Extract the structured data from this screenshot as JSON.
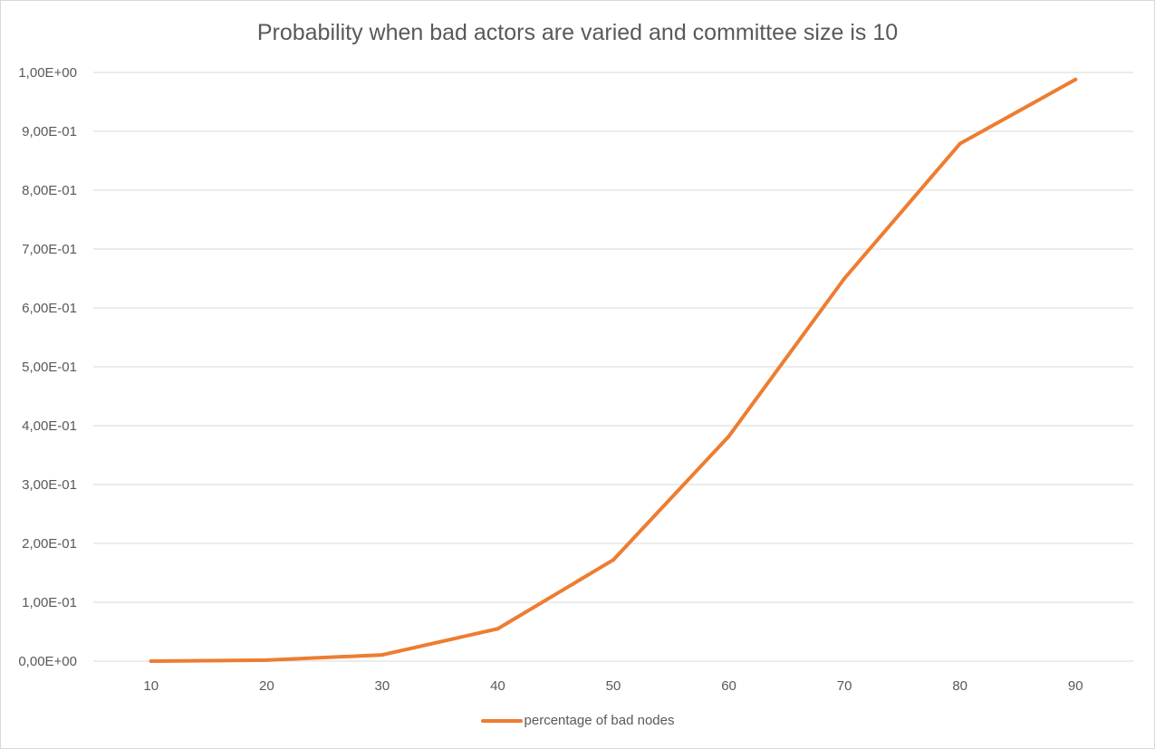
{
  "chart_data": {
    "type": "line",
    "title": "Probability when bad actors are varied and committee size is 10",
    "xlabel": "",
    "ylabel": "",
    "categories": [
      "10",
      "20",
      "30",
      "40",
      "50",
      "60",
      "70",
      "80",
      "90"
    ],
    "ylim": [
      0,
      1.0
    ],
    "yticks": [
      {
        "value": 0.0,
        "label": "0,00E+00"
      },
      {
        "value": 0.1,
        "label": "1,00E-01"
      },
      {
        "value": 0.2,
        "label": "2,00E-01"
      },
      {
        "value": 0.3,
        "label": "3,00E-01"
      },
      {
        "value": 0.4,
        "label": "4,00E-01"
      },
      {
        "value": 0.5,
        "label": "5,00E-01"
      },
      {
        "value": 0.6,
        "label": "6,00E-01"
      },
      {
        "value": 0.7,
        "label": "7,00E-01"
      },
      {
        "value": 0.8,
        "label": "8,00E-01"
      },
      {
        "value": 0.9,
        "label": "9,00E-01"
      },
      {
        "value": 1.0,
        "label": "1,00E+00"
      }
    ],
    "grid": true,
    "legend_position": "bottom",
    "series": [
      {
        "name": "percentage of bad nodes",
        "color": "#ed7d31",
        "values": [
          0.0,
          0.0017,
          0.0106,
          0.055,
          0.172,
          0.382,
          0.65,
          0.879,
          0.988
        ]
      }
    ]
  }
}
